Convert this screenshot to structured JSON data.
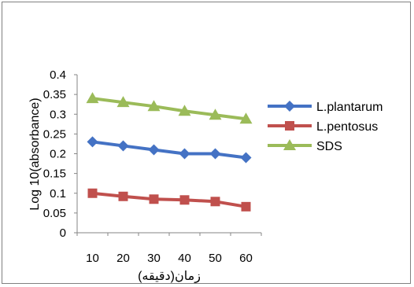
{
  "chart_data": {
    "type": "line",
    "title": "",
    "xlabel": "زمان(دقیقه)",
    "ylabel": "Log 10(absorbance)",
    "x": [
      10,
      20,
      30,
      40,
      50,
      60
    ],
    "ylim": [
      0,
      0.4
    ],
    "yticks": [
      "0",
      "0.05",
      "0.1",
      "0.15",
      "0.2",
      "0.25",
      "0.3",
      "0.35",
      "0.4"
    ],
    "grid": false,
    "legend_position": "right",
    "series": [
      {
        "name": "L.plantarum",
        "values": [
          0.23,
          0.22,
          0.21,
          0.2,
          0.2,
          0.19
        ],
        "color": "#4472c4",
        "marker": "diamond"
      },
      {
        "name": "L.pentosus",
        "values": [
          0.1,
          0.092,
          0.085,
          0.083,
          0.079,
          0.066
        ],
        "color": "#c0504d",
        "marker": "square"
      },
      {
        "name": "SDS",
        "values": [
          0.34,
          0.33,
          0.32,
          0.308,
          0.298,
          0.288
        ],
        "color": "#9bbb59",
        "marker": "triangle"
      }
    ]
  }
}
